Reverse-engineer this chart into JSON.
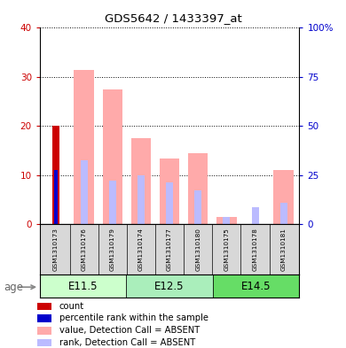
{
  "title": "GDS5642 / 1433397_at",
  "samples": [
    "GSM1310173",
    "GSM1310176",
    "GSM1310179",
    "GSM1310174",
    "GSM1310177",
    "GSM1310180",
    "GSM1310175",
    "GSM1310178",
    "GSM1310181"
  ],
  "groups": [
    {
      "label": "E11.5",
      "indices": [
        0,
        1,
        2
      ]
    },
    {
      "label": "E12.5",
      "indices": [
        3,
        4,
        5
      ]
    },
    {
      "label": "E14.5",
      "indices": [
        6,
        7,
        8
      ]
    }
  ],
  "count_values": [
    20,
    0,
    0,
    0,
    0,
    0,
    0,
    0,
    0
  ],
  "percentile_rank_values": [
    11,
    0,
    0,
    0,
    0,
    0,
    0,
    0,
    0
  ],
  "value_absent": [
    0,
    31.5,
    27.5,
    17.5,
    13.5,
    14.5,
    1.5,
    0,
    11
  ],
  "rank_absent": [
    0,
    13,
    9,
    10,
    8.5,
    7,
    1.5,
    3.5,
    4.5
  ],
  "ylim_left": [
    0,
    40
  ],
  "ylim_right": [
    0,
    100
  ],
  "yticks_left": [
    0,
    10,
    20,
    30,
    40
  ],
  "yticks_right": [
    0,
    25,
    50,
    75,
    100
  ],
  "ytick_labels_left": [
    "0",
    "10",
    "20",
    "30",
    "40"
  ],
  "ytick_labels_right": [
    "0",
    "25",
    "50",
    "75",
    "100%"
  ],
  "color_count": "#cc0000",
  "color_percentile": "#0000cc",
  "color_value_absent": "#ffaaaa",
  "color_rank_absent": "#bbbbff",
  "age_label": "age",
  "legend_labels": [
    "count",
    "percentile rank within the sample",
    "value, Detection Call = ABSENT",
    "rank, Detection Call = ABSENT"
  ],
  "bg_color": "#d8d8d8",
  "plot_bg": "#ffffff",
  "group_colors": [
    "#ccffcc",
    "#aaeebb",
    "#66dd66"
  ]
}
